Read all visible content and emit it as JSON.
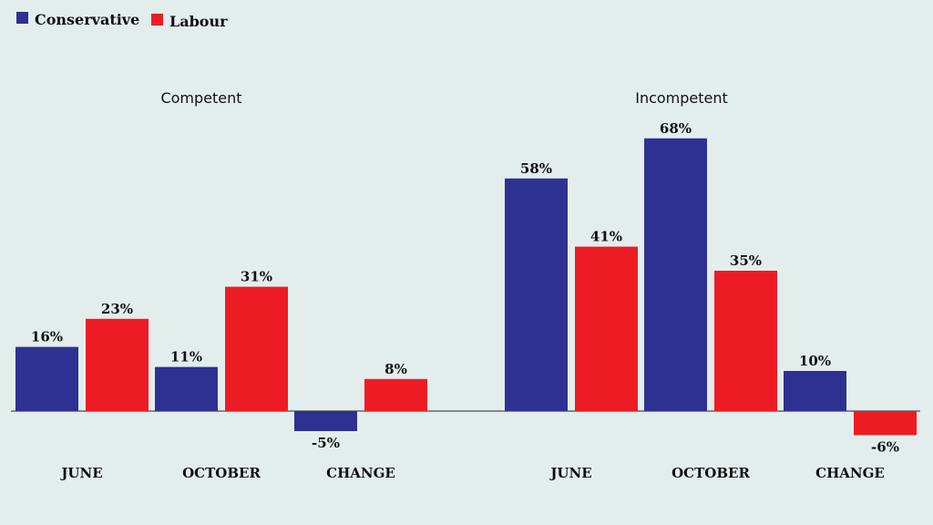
{
  "legend": [
    {
      "name": "Conservative",
      "color": "#2e3191"
    },
    {
      "name": "Labour",
      "color": "#ed1c24"
    }
  ],
  "chart_data": [
    {
      "type": "bar",
      "title": "Competent",
      "categories": [
        "JUNE",
        "OCTOBER",
        "CHANGE"
      ],
      "series": [
        {
          "name": "Conservative",
          "color": "#2e3191",
          "values": [
            16,
            11,
            -5
          ],
          "labels": [
            "16%",
            "11%",
            "-5%"
          ]
        },
        {
          "name": "Labour",
          "color": "#ed1c24",
          "values": [
            23,
            31,
            8
          ],
          "labels": [
            "23%",
            "31%",
            "8%"
          ]
        }
      ],
      "unit": "%",
      "grid": false,
      "legend_position": "top-left"
    },
    {
      "type": "bar",
      "title": "Incompetent",
      "categories": [
        "JUNE",
        "OCTOBER",
        "CHANGE"
      ],
      "series": [
        {
          "name": "Conservative",
          "color": "#2e3191",
          "values": [
            58,
            68,
            10
          ],
          "labels": [
            "58%",
            "68%",
            "10%"
          ]
        },
        {
          "name": "Labour",
          "color": "#ed1c24",
          "values": [
            41,
            35,
            -6
          ],
          "labels": [
            "41%",
            "35%",
            "-6%"
          ]
        }
      ],
      "unit": "%",
      "grid": false,
      "legend_position": "top-left"
    }
  ]
}
